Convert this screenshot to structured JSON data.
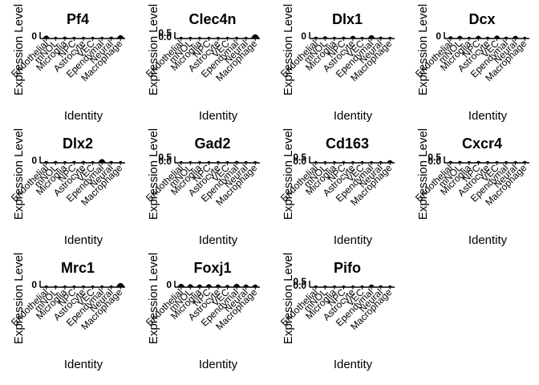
{
  "chart_data": [
    {
      "type": "bar",
      "title": "Pf4",
      "xlabel": "Identity",
      "ylabel": "Expression Level",
      "yticks": [
        "0"
      ],
      "categories": [
        "Endothelial",
        "mNOL",
        "Microglia",
        "NPC",
        "Astrocyte",
        "VEC",
        "Ependymal",
        "Neural",
        "Macrophage"
      ],
      "values": [
        0.25,
        0.05,
        0.1,
        0.05,
        0.05,
        0.05,
        0.05,
        0.1,
        0.3
      ]
    },
    {
      "type": "bar",
      "title": "Clec4n",
      "xlabel": "Identity",
      "ylabel": "Expression Level",
      "yticks": [
        "0.5",
        "0.0"
      ],
      "categories": [
        "Endothelial",
        "mNOL",
        "Microglia",
        "NPC",
        "Astrocyte",
        "VEC",
        "Ependymal",
        "Neural",
        "Macrophage"
      ],
      "values": [
        0.02,
        0.01,
        0.02,
        0.01,
        0.01,
        0.01,
        0.01,
        0.02,
        0.4
      ]
    },
    {
      "type": "bar",
      "title": "Dlx1",
      "xlabel": "Identity",
      "ylabel": "Expression Level",
      "yticks": [
        "0"
      ],
      "categories": [
        "Endothelial",
        "mNOL",
        "Microglia",
        "NPC",
        "Astrocyte",
        "VEC",
        "Ependymal",
        "Neural",
        "Macrophage"
      ],
      "values": [
        0.1,
        0.15,
        0.05,
        0.1,
        0.2,
        0.05,
        0.3,
        0.1,
        0.05
      ]
    },
    {
      "type": "bar",
      "title": "Dcx",
      "xlabel": "Identity",
      "ylabel": "Expression Level",
      "yticks": [
        "0"
      ],
      "categories": [
        "Endothelial",
        "mNOL",
        "Microglia",
        "NPC",
        "Astrocyte",
        "VEC",
        "Ependymal",
        "Neural",
        "Macrophage"
      ],
      "values": [
        0.15,
        0.2,
        0.05,
        0.2,
        0.1,
        0.25,
        0.1,
        0.2,
        0.05
      ]
    },
    {
      "type": "bar",
      "title": "Dlx2",
      "xlabel": "Identity",
      "ylabel": "Expression Level",
      "yticks": [
        "0"
      ],
      "categories": [
        "Endothelial",
        "mNOL",
        "Microglia",
        "NPC",
        "Astrocyte",
        "VEC",
        "Ependymal",
        "Neural",
        "Macrophage"
      ],
      "values": [
        0.1,
        0.1,
        0.05,
        0.1,
        0.1,
        0.05,
        0.35,
        0.1,
        0.05
      ]
    },
    {
      "type": "bar",
      "title": "Gad2",
      "xlabel": "Identity",
      "ylabel": "Expression Level",
      "yticks": [
        "0.5",
        "0.0"
      ],
      "categories": [
        "Endothelial",
        "mNOL",
        "Microglia",
        "NPC",
        "Astrocyte",
        "VEC",
        "Ependymal",
        "Neural",
        "Macrophage"
      ],
      "values": [
        0.02,
        0.02,
        0.01,
        0.02,
        0.05,
        0.02,
        0.1,
        0.05,
        0.02
      ]
    },
    {
      "type": "bar",
      "title": "Cd163",
      "xlabel": "Identity",
      "ylabel": "Expression Level",
      "yticks": [
        "0.5",
        "0.0"
      ],
      "categories": [
        "Endothelial",
        "mNOL",
        "Microglia",
        "NPC",
        "Astrocyte",
        "VEC",
        "Ependymal",
        "Neural",
        "Macrophage"
      ],
      "values": [
        0.01,
        0.01,
        0.01,
        0.01,
        0.01,
        0.01,
        0.01,
        0.01,
        0.2
      ]
    },
    {
      "type": "bar",
      "title": "Cxcr4",
      "xlabel": "Identity",
      "ylabel": "Expression Level",
      "yticks": [
        "0.5",
        "0.0"
      ],
      "categories": [
        "Endothelial",
        "mNOL",
        "Microglia",
        "NPC",
        "Astrocyte",
        "VEC",
        "Ependymal",
        "Neural",
        "Macrophage"
      ],
      "values": [
        0.1,
        0.1,
        0.05,
        0.1,
        0.05,
        0.05,
        0.05,
        0.05,
        0.1
      ]
    },
    {
      "type": "bar",
      "title": "Mrc1",
      "xlabel": "Identity",
      "ylabel": "Expression Level",
      "yticks": [
        "0"
      ],
      "categories": [
        "Endothelial",
        "mNOL",
        "Microglia",
        "NPC",
        "Astrocyte",
        "VEC",
        "Ependymal",
        "Neural",
        "Macrophage"
      ],
      "values": [
        0.05,
        0.02,
        0.05,
        0.02,
        0.02,
        0.02,
        0.02,
        0.02,
        0.4
      ]
    },
    {
      "type": "bar",
      "title": "Foxj1",
      "xlabel": "Identity",
      "ylabel": "Expression Level",
      "yticks": [
        "0"
      ],
      "categories": [
        "Endothelial",
        "mNOL",
        "Microglia",
        "NPC",
        "Astrocyte",
        "VEC",
        "Ependymal",
        "Neural",
        "Macrophage"
      ],
      "values": [
        0.3,
        0.25,
        0.2,
        0.25,
        0.2,
        0.15,
        0.3,
        0.2,
        0.2
      ]
    },
    {
      "type": "bar",
      "title": "Pifo",
      "xlabel": "Identity",
      "ylabel": "Expression Level",
      "yticks": [
        "0.5",
        "0.0"
      ],
      "categories": [
        "Endothelial",
        "mNOL",
        "Microglia",
        "NPC",
        "Astrocyte",
        "VEC",
        "Ependymal",
        "Neural",
        "Macrophage"
      ],
      "values": [
        0.05,
        0.05,
        0.02,
        0.05,
        0.05,
        0.05,
        0.2,
        0.1,
        0.05
      ]
    }
  ]
}
